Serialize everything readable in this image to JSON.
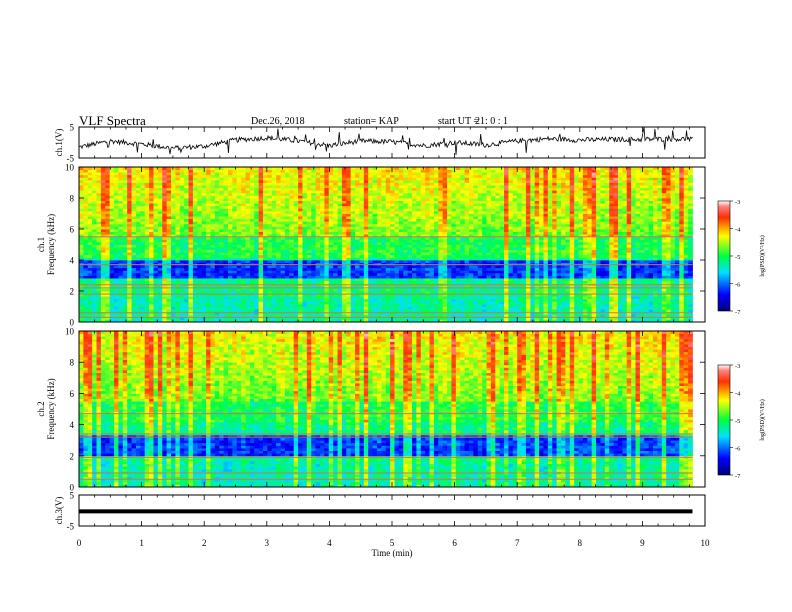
{
  "header": {
    "title": "VLF Spectra",
    "date": "Dec.26, 2018",
    "station": "station= KAP",
    "start_label": "start UT =",
    "start_value": "21: 0 : 1"
  },
  "chart_data": [
    {
      "type": "line",
      "panel": "ch1-waveform",
      "ylabel": "ch.1(V)",
      "ylim": [
        -5,
        5
      ],
      "yticks": [
        "5",
        "-5"
      ],
      "xlim": [
        0,
        10
      ],
      "x_end": 9.8,
      "description_of_values": "noisy waveform",
      "x": [
        0,
        0.5,
        1,
        1.5,
        2,
        2.5,
        3,
        3.5,
        4,
        4.5,
        5,
        5.5,
        6,
        6.5,
        7,
        7.5,
        8,
        8.5,
        9,
        9.5,
        9.8
      ],
      "y": [
        -1.5,
        0.5,
        -0.5,
        -1.8,
        -1.2,
        0.8,
        1.5,
        0.5,
        -1.0,
        0.5,
        0.2,
        -1.0,
        0.0,
        -0.8,
        0.5,
        1.2,
        0.8,
        1.0,
        1.0,
        1.2,
        1.0
      ]
    },
    {
      "type": "heatmap",
      "panel": "ch1-spectrogram",
      "ylabel_top": "ch.1",
      "ylabel": "Frequency (kHz)",
      "ylim": [
        0,
        10
      ],
      "yticks": [
        "0",
        "2",
        "4",
        "6",
        "8",
        "10"
      ],
      "xlim": [
        0,
        10
      ],
      "x_end": 9.8,
      "colorbar": {
        "range": [
          -7,
          -3
        ],
        "ticks": [
          "-3",
          "-4",
          "-5",
          "-6",
          "-7"
        ],
        "label": "log(PSD)(V²/Hz)"
      }
    },
    {
      "type": "heatmap",
      "panel": "ch2-spectrogram",
      "ylabel_top": "ch.2",
      "ylabel": "Frequency (kHz)",
      "ylim": [
        0,
        10
      ],
      "yticks": [
        "0",
        "2",
        "4",
        "6",
        "8",
        "10"
      ],
      "xlim": [
        0,
        10
      ],
      "x_end": 9.8,
      "colorbar": {
        "range": [
          -7,
          -3
        ],
        "ticks": [
          "-3",
          "-4",
          "-5",
          "-6",
          "-7"
        ],
        "label": "log(PSD)(V²/Hz)"
      }
    },
    {
      "type": "line",
      "panel": "ch3-waveform",
      "ylabel": "ch.3(V)",
      "ylim": [
        -5,
        5
      ],
      "yticks": [
        "5",
        "-5"
      ],
      "xlim": [
        0,
        10
      ],
      "x_end": 9.8,
      "x": [
        0,
        9.8
      ],
      "y": [
        -0.3,
        -0.3
      ]
    }
  ],
  "xaxis": {
    "label": "Time (min)",
    "ticks": [
      "0",
      "1",
      "2",
      "3",
      "4",
      "5",
      "6",
      "7",
      "8",
      "9",
      "10"
    ]
  }
}
